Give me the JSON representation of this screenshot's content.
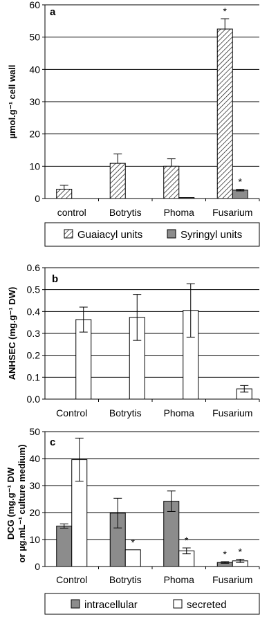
{
  "chart_data": [
    {
      "type": "bar",
      "panel": "a",
      "ylabel": "µmol.g⁻¹ cell wall",
      "ylim": [
        0,
        60
      ],
      "yticks": [
        0,
        10,
        20,
        30,
        40,
        50,
        60
      ],
      "categories": [
        "control",
        "Botrytis",
        "Phoma",
        "Fusarium"
      ],
      "grid": true,
      "legend_position": "bottom",
      "series": [
        {
          "name": "Guaiacyl units",
          "pattern": "hatch",
          "color": "#ffffff",
          "values": [
            2.9,
            10.9,
            10.0,
            52.5
          ],
          "errors": [
            1.2,
            2.9,
            2.3,
            3.2
          ],
          "significant": [
            false,
            false,
            false,
            true
          ]
        },
        {
          "name": "Syringyl units",
          "pattern": "solid",
          "color": "#8c8c8c",
          "values": [
            0,
            0,
            0.3,
            2.6
          ],
          "errors": [
            0,
            0,
            0,
            0.25
          ],
          "significant": [
            false,
            false,
            false,
            true
          ]
        }
      ],
      "annotation": "*"
    },
    {
      "type": "bar",
      "panel": "b",
      "ylabel": "ANHSEC (mg.g⁻¹ DW)",
      "ylim": [
        0,
        0.6
      ],
      "yticks": [
        "0.0",
        "0.1",
        "0.2",
        "0.3",
        "0.4",
        "0.5",
        "0.6"
      ],
      "categories": [
        "Control",
        "Botrytis",
        "Phoma",
        "Fusarium"
      ],
      "grid": true,
      "series": [
        {
          "color": "#ffffff",
          "values": [
            0.363,
            0.373,
            0.405,
            0.047
          ],
          "errors": [
            0.057,
            0.105,
            0.122,
            0.015
          ]
        }
      ]
    },
    {
      "type": "bar",
      "panel": "c",
      "ylabel": "DCG (mg.g⁻¹ DW",
      "ylabel2": "or µg.mL⁻¹ culture medium)",
      "ylim": [
        0,
        50
      ],
      "yticks": [
        0,
        10,
        20,
        30,
        40,
        50
      ],
      "categories": [
        "Control",
        "Botrytis",
        "Phoma",
        "Fusarium"
      ],
      "grid": true,
      "legend_position": "bottom",
      "series": [
        {
          "name": "intracellular",
          "color": "#8c8c8c",
          "values": [
            15.0,
            19.8,
            24.2,
            1.5
          ],
          "errors": [
            0.8,
            5.5,
            3.8,
            0.3
          ],
          "significant": [
            false,
            false,
            false,
            true
          ]
        },
        {
          "name": "secreted",
          "color": "#ffffff",
          "values": [
            39.6,
            6.2,
            5.8,
            2.1
          ],
          "errors": [
            8.0,
            0,
            1.1,
            0.6
          ],
          "significant": [
            false,
            true,
            true,
            true
          ]
        }
      ],
      "annotation": "*"
    }
  ]
}
